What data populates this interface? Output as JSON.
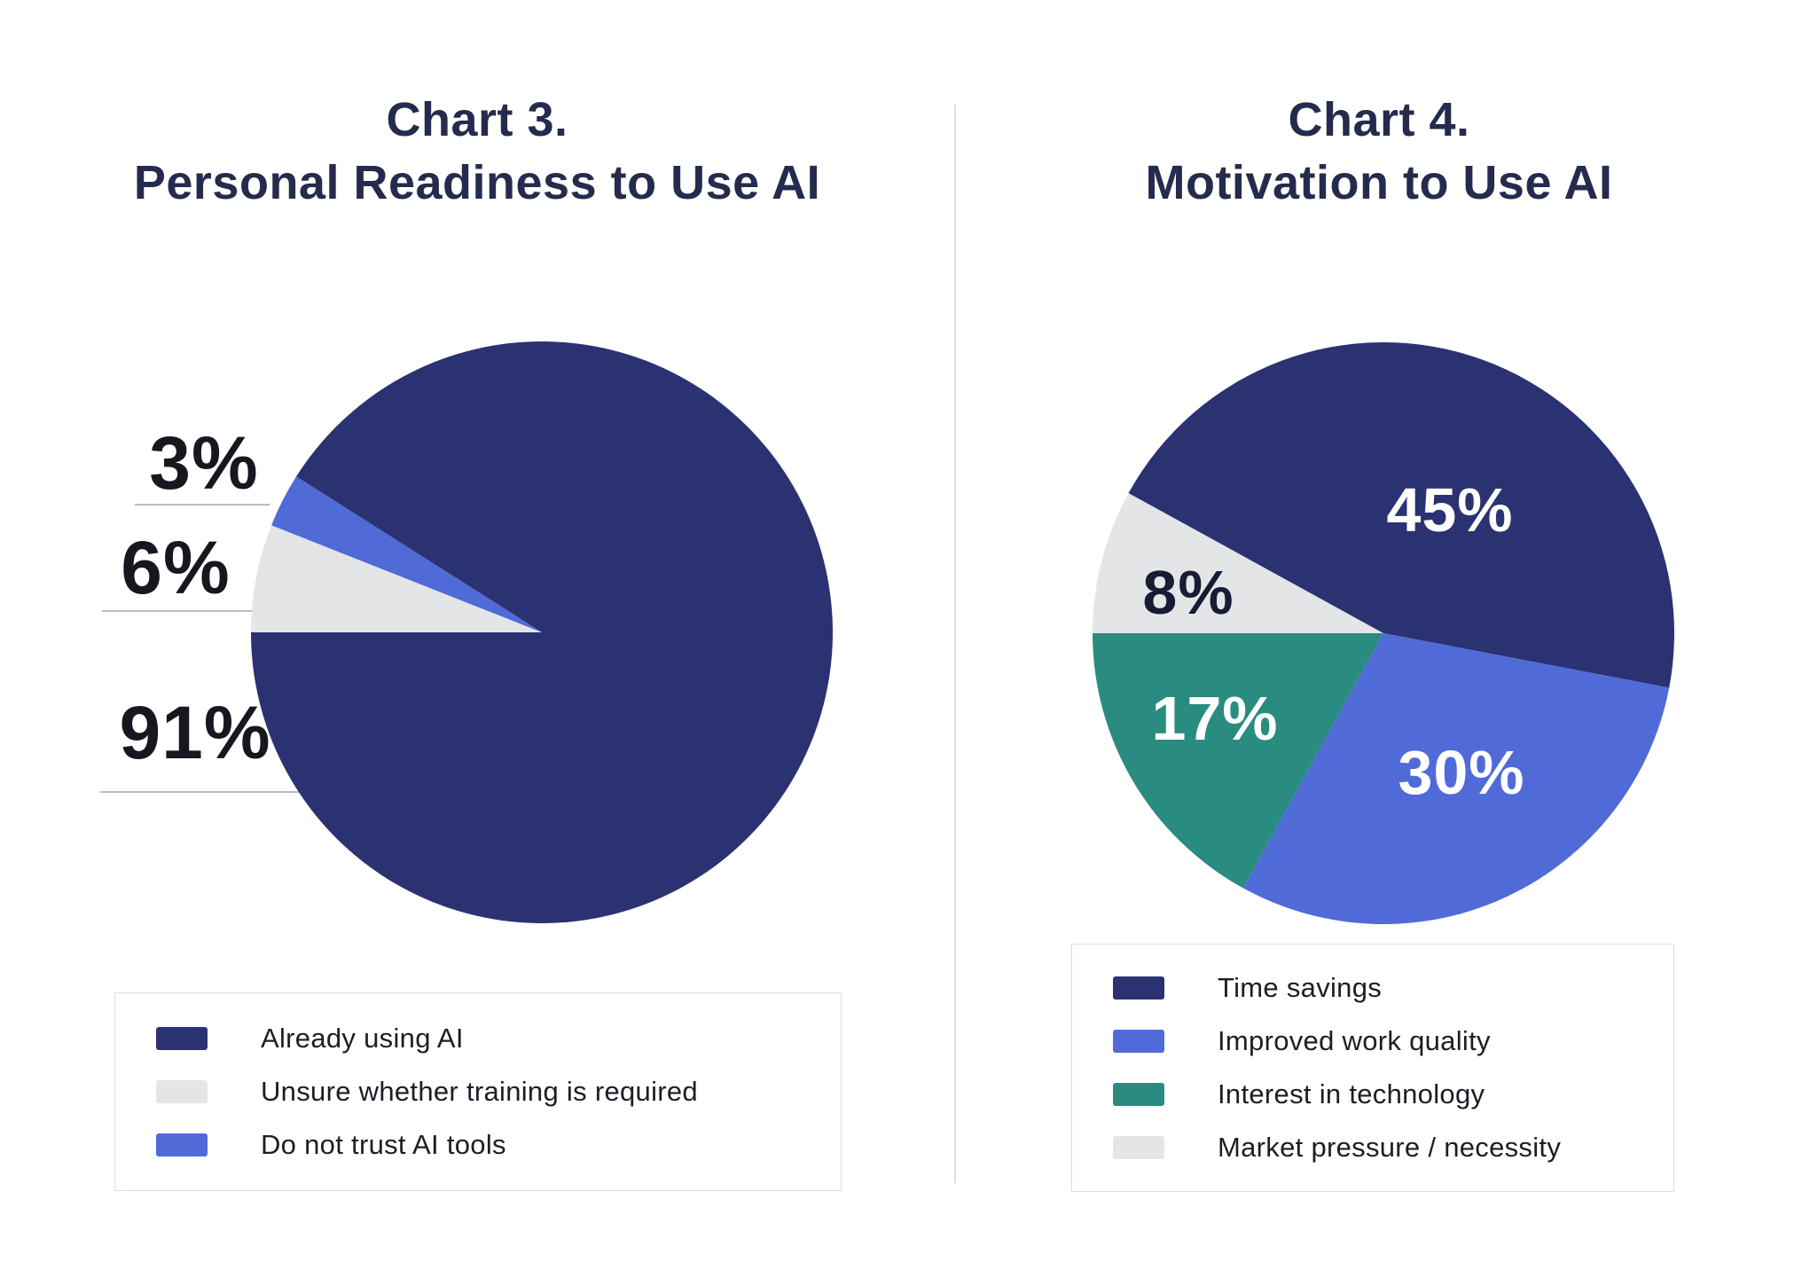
{
  "chart_data": [
    {
      "type": "pie",
      "title": "Chart 3.",
      "subtitle": "Personal Readiness to Use AI",
      "slices": [
        {
          "label": "Already using AI",
          "value": 91,
          "color": "#2b3272"
        },
        {
          "label": "Unsure whether training is required",
          "value": 6,
          "color": "#e4e5e7"
        },
        {
          "label": "Do not trust AI tools",
          "value": 3,
          "color": "#506bd8"
        }
      ],
      "draw_order": [
        1,
        2,
        0
      ],
      "start_angle": 180,
      "direction": "clockwise",
      "label_placement": "outside-left",
      "outside_labels": [
        "3%",
        "6%",
        "91%"
      ],
      "legend_position": "bottom-box"
    },
    {
      "type": "pie",
      "title": "Chart 4.",
      "subtitle": "Motivation to Use AI",
      "slices": [
        {
          "label": "Time savings",
          "value": 45,
          "color": "#2b3272",
          "value_label": "45%",
          "value_label_color": "#ffffff"
        },
        {
          "label": "Improved work quality",
          "value": 30,
          "color": "#506bd8",
          "value_label": "30%",
          "value_label_color": "#ffffff"
        },
        {
          "label": "Interest in technology",
          "value": 17,
          "color": "#2a8b80",
          "value_label": "17%",
          "value_label_color": "#ffffff"
        },
        {
          "label": "Market pressure / necessity",
          "value": 8,
          "color": "#e4e5e7",
          "value_label": "8%",
          "value_label_color": "#171b33"
        }
      ],
      "draw_order": [
        3,
        0,
        1,
        2
      ],
      "start_angle": 180,
      "direction": "clockwise",
      "label_placement": "inside",
      "legend_position": "bottom-box"
    }
  ]
}
